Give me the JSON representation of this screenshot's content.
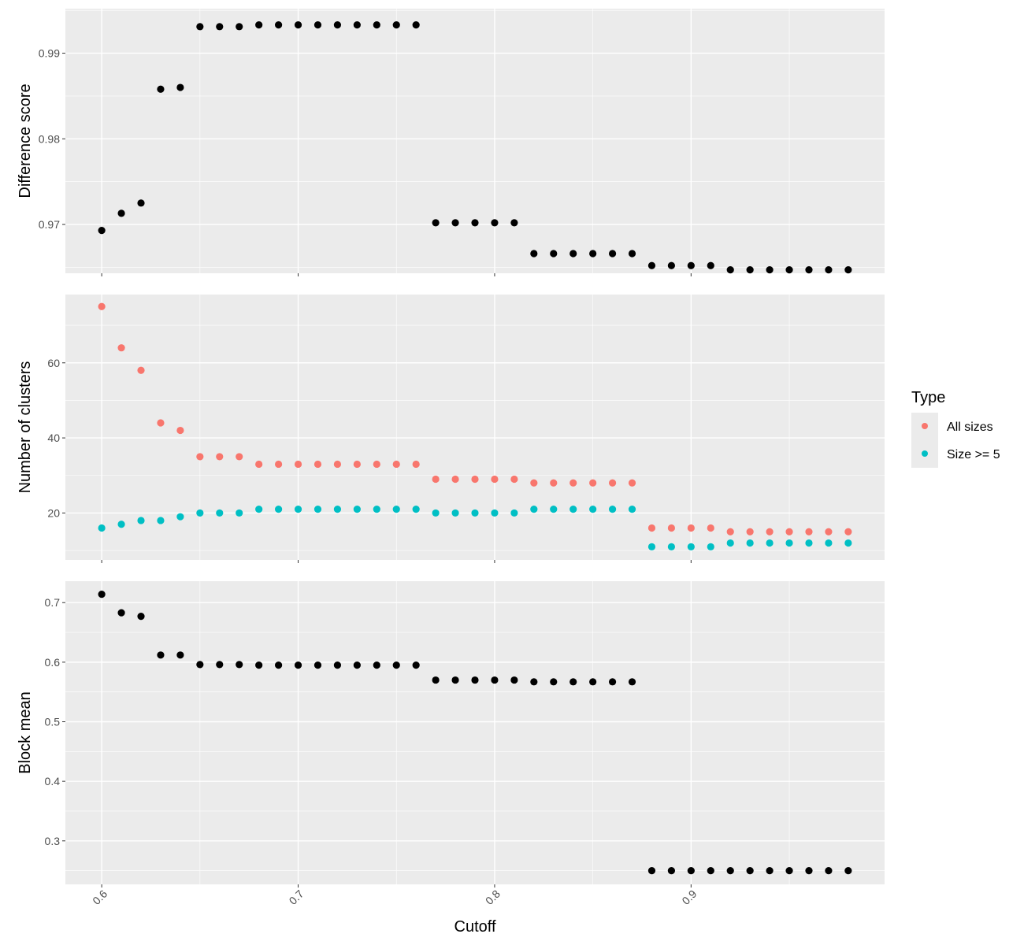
{
  "chart_data": {
    "type": "scatter",
    "x_title": "Cutoff",
    "x_ticks": [
      0.6,
      0.7,
      0.8,
      0.9
    ],
    "x_tick_labels": [
      "0.6",
      "0.7",
      "0.8",
      "0.9"
    ],
    "x_range": [
      0.5815,
      0.9985
    ],
    "x": [
      0.6,
      0.61,
      0.62,
      0.63,
      0.64,
      0.65,
      0.66,
      0.67,
      0.68,
      0.69,
      0.7,
      0.71,
      0.72,
      0.73,
      0.74,
      0.75,
      0.76,
      0.77,
      0.78,
      0.79,
      0.8,
      0.81,
      0.82,
      0.83,
      0.84,
      0.85,
      0.86,
      0.87,
      0.88,
      0.89,
      0.9,
      0.91,
      0.92,
      0.93,
      0.94,
      0.95,
      0.96,
      0.97,
      0.98
    ],
    "grid": true,
    "legend": {
      "title": "Type",
      "position": "right",
      "entries": [
        {
          "label": "All sizes",
          "color": "#F8766D"
        },
        {
          "label": "Size >= 5",
          "color": "#00BFC4"
        }
      ]
    },
    "panels": [
      {
        "ylabel": "Difference score",
        "ylim": [
          0.9643,
          0.9952
        ],
        "y_ticks": [
          0.97,
          0.98,
          0.99
        ],
        "y_tick_labels": [
          "0.97",
          "0.98",
          "0.99"
        ],
        "series": [
          {
            "color": "#000000",
            "values": [
              0.9693,
              0.9713,
              0.9725,
              0.9858,
              0.986,
              0.9931,
              0.9931,
              0.9931,
              0.9933,
              0.9933,
              0.9933,
              0.9933,
              0.9933,
              0.9933,
              0.9933,
              0.9933,
              0.9933,
              0.9702,
              0.9702,
              0.9702,
              0.9702,
              0.9702,
              0.9666,
              0.9666,
              0.9666,
              0.9666,
              0.9666,
              0.9666,
              0.9652,
              0.9652,
              0.9652,
              0.9652,
              0.9647,
              0.9647,
              0.9647,
              0.9647,
              0.9647,
              0.9647,
              0.9647
            ]
          }
        ]
      },
      {
        "ylabel": "Number of clusters",
        "ylim": [
          7.5,
          78.2
        ],
        "y_ticks": [
          20,
          40,
          60
        ],
        "y_tick_labels": [
          "20",
          "40",
          "60"
        ],
        "series": [
          {
            "name": "All sizes",
            "color": "#F8766D",
            "values": [
              75,
              64,
              58,
              44,
              42,
              35,
              35,
              35,
              33,
              33,
              33,
              33,
              33,
              33,
              33,
              33,
              33,
              29,
              29,
              29,
              29,
              29,
              28,
              28,
              28,
              28,
              28,
              28,
              16,
              16,
              16,
              16,
              15,
              15,
              15,
              15,
              15,
              15,
              15
            ]
          },
          {
            "name": "Size >= 5",
            "color": "#00BFC4",
            "values": [
              16,
              17,
              18,
              18,
              19,
              20,
              20,
              20,
              21,
              21,
              21,
              21,
              21,
              21,
              21,
              21,
              21,
              20,
              20,
              20,
              20,
              20,
              21,
              21,
              21,
              21,
              21,
              21,
              11,
              11,
              11,
              11,
              12,
              12,
              12,
              12,
              12,
              12,
              12
            ]
          }
        ]
      },
      {
        "ylabel": "Block mean",
        "ylim": [
          0.227,
          0.736
        ],
        "y_ticks": [
          0.3,
          0.4,
          0.5,
          0.6,
          0.7
        ],
        "y_tick_labels": [
          "0.3",
          "0.4",
          "0.5",
          "0.6",
          "0.7"
        ],
        "series": [
          {
            "color": "#000000",
            "values": [
              0.714,
              0.683,
              0.677,
              0.612,
              0.612,
              0.596,
              0.596,
              0.596,
              0.595,
              0.595,
              0.595,
              0.595,
              0.595,
              0.595,
              0.595,
              0.595,
              0.595,
              0.57,
              0.57,
              0.57,
              0.57,
              0.57,
              0.567,
              0.567,
              0.567,
              0.567,
              0.567,
              0.567,
              0.25,
              0.25,
              0.25,
              0.25,
              0.25,
              0.25,
              0.25,
              0.25,
              0.25,
              0.25,
              0.25
            ]
          }
        ]
      }
    ]
  }
}
